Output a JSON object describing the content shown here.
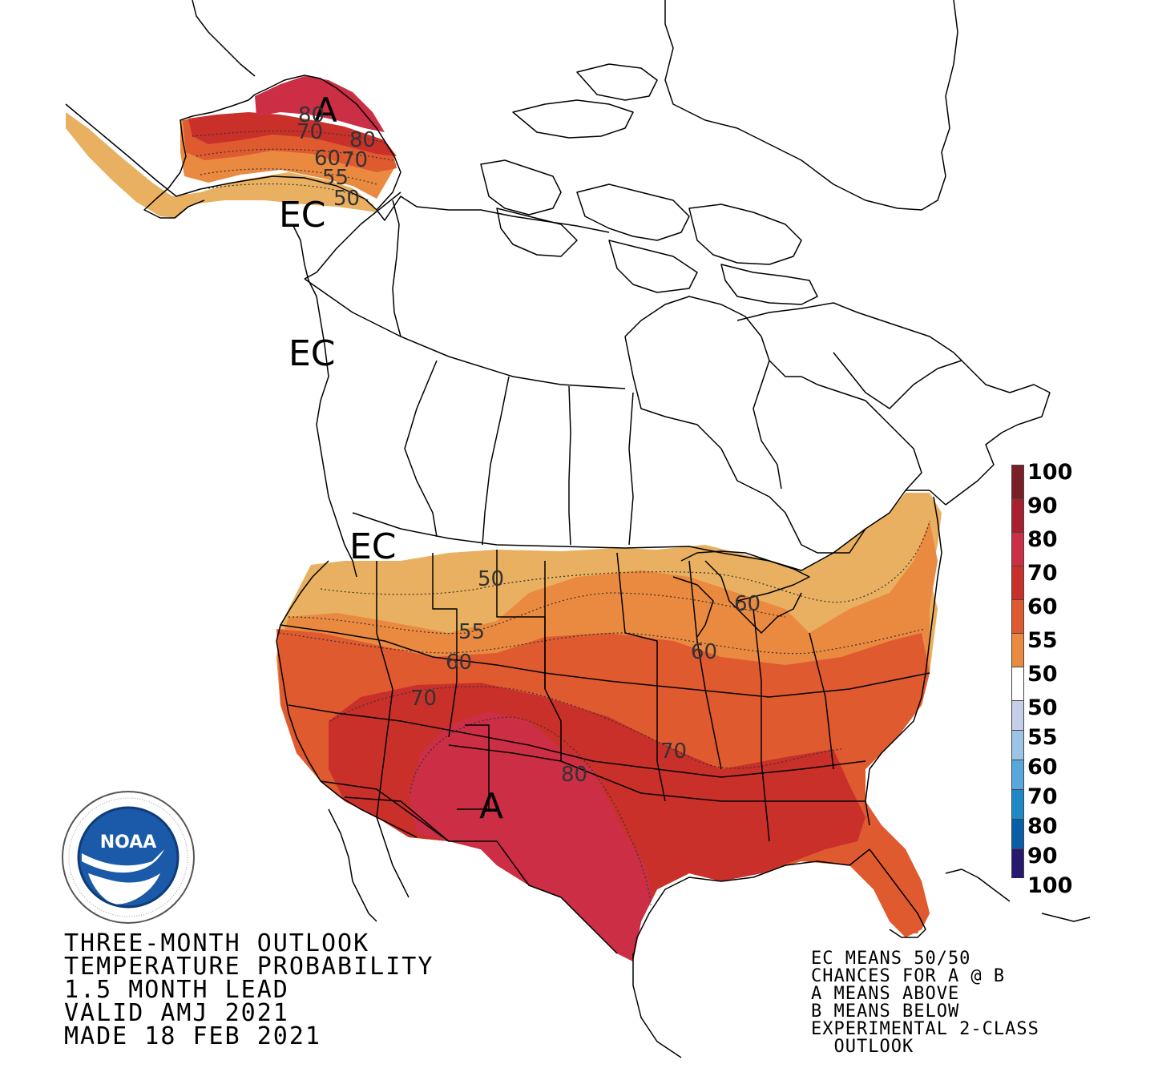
{
  "title_lines": [
    "THREE-MONTH OUTLOOK",
    "TEMPERATURE PROBABILITY",
    "1.5 MONTH LEAD",
    "VALID AMJ 2021",
    "MADE 18 FEB 2021"
  ],
  "note_lines": [
    "EC MEANS 50/50",
    "CHANCES FOR A @ B",
    "A MEANS ABOVE",
    "B MEANS BELOW",
    "EXPERIMENTAL 2-CLASS",
    "  OUTLOOK"
  ],
  "legend": {
    "above": [
      {
        "label": "100",
        "color": "#7a1f28"
      },
      {
        "label": "90",
        "color": "#a8202f"
      },
      {
        "label": "80",
        "color": "#cc2e45"
      },
      {
        "label": "70",
        "color": "#c9302a"
      },
      {
        "label": "60",
        "color": "#e05a30"
      },
      {
        "label": "55",
        "color": "#ea8a40"
      },
      {
        "label": "50",
        "color": "#e8b060"
      }
    ],
    "neutral": {
      "label": "50",
      "color": "#ffffff"
    },
    "below": [
      {
        "label": "55",
        "color": "#c6cfe8"
      },
      {
        "label": "60",
        "color": "#9cc4e6"
      },
      {
        "label": "70",
        "color": "#58a8dc"
      },
      {
        "label": "80",
        "color": "#1e88c8"
      },
      {
        "label": "90",
        "color": "#0a5ea8"
      },
      {
        "label": "100",
        "color": "#281a6e"
      }
    ]
  },
  "map_labels": {
    "ec_alaska": "EC",
    "ec_bc": "EC",
    "ec_pnw": "EC",
    "a_alaska": "A",
    "a_southwest": "A",
    "contours": [
      "80",
      "70",
      "80",
      "60",
      "70",
      "55",
      "50",
      "50",
      "55",
      "60",
      "70",
      "60",
      "60",
      "70",
      "80"
    ]
  },
  "logo": {
    "text": "NOAA"
  },
  "colors": {
    "tan": "#e8b060",
    "light_orange": "#ea8a40",
    "orange": "#e05a30",
    "red": "#c9302a",
    "crimson": "#cc2e45"
  }
}
